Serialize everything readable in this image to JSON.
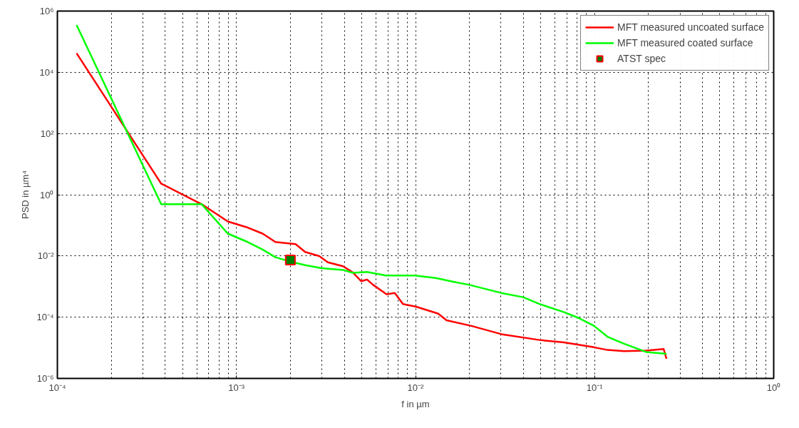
{
  "chart_data": {
    "type": "line",
    "xlabel": "f in µm",
    "ylabel": "PSD in µm⁴",
    "log": "xy",
    "xlim": [
      0.0001,
      1
    ],
    "ylim": [
      1e-06,
      1000000
    ],
    "xticks": [
      {
        "value": 0.0001,
        "label": "10⁻⁴"
      },
      {
        "value": 0.001,
        "label": "10⁻³"
      },
      {
        "value": 0.01,
        "label": "10⁻²"
      },
      {
        "value": 0.1,
        "label": "10⁻¹"
      },
      {
        "value": 1,
        "label": "10⁰"
      }
    ],
    "yticks": [
      {
        "value": 1e-06,
        "label": "10⁻⁶"
      },
      {
        "value": 0.0001,
        "label": "10⁻⁴"
      },
      {
        "value": 0.01,
        "label": "10⁻²"
      },
      {
        "value": 1,
        "label": "10⁰"
      },
      {
        "value": 100,
        "label": "10²"
      },
      {
        "value": 10000,
        "label": "10⁴"
      },
      {
        "value": 1000000,
        "label": "10⁶"
      }
    ],
    "grid": true,
    "legend": "top right",
    "line_style": "solid",
    "series": [
      {
        "name": "MFT measured uncoated surface",
        "color": "#ff0000",
        "x": [
          0.000128,
          0.00038,
          0.00064,
          0.000895,
          0.00113,
          0.0014,
          0.00165,
          0.00214,
          0.00242,
          0.0029,
          0.00324,
          0.00394,
          0.00446,
          0.00497,
          0.00536,
          0.00578,
          0.00689,
          0.00766,
          0.00851,
          0.0101,
          0.0134,
          0.0149,
          0.0205,
          0.0301,
          0.0492,
          0.0675,
          0.0993,
          0.118,
          0.146,
          0.194,
          0.243,
          0.252
        ],
        "values": [
          42000,
          2.3,
          0.49,
          0.134,
          0.0885,
          0.0537,
          0.0286,
          0.0243,
          0.0135,
          0.0099,
          0.0062,
          0.0046,
          0.0029,
          0.0015,
          0.0017,
          0.00115,
          0.00056,
          0.00062,
          0.00027,
          0.00022,
          0.00013,
          7.9e-05,
          5.2e-05,
          2.8e-05,
          1.8e-05,
          1.5e-05,
          1.04e-05,
          8.5e-06,
          7.8e-06,
          8.1e-06,
          9.1e-06,
          4.4e-06
        ]
      },
      {
        "name": "MFT measured coated surface",
        "color": "#00ff00",
        "x": [
          0.000128,
          0.00038,
          0.00064,
          0.000895,
          0.00113,
          0.0014,
          0.00165,
          0.00199,
          0.00242,
          0.003,
          0.00394,
          0.00446,
          0.00536,
          0.00684,
          0.00989,
          0.013,
          0.0166,
          0.0198,
          0.0301,
          0.0399,
          0.0492,
          0.0675,
          0.0805,
          0.0993,
          0.118,
          0.146,
          0.194,
          0.252
        ],
        "values": [
          350000,
          0.49,
          0.49,
          0.0537,
          0.0302,
          0.0162,
          0.0091,
          0.0066,
          0.005,
          0.004,
          0.0035,
          0.0028,
          0.003,
          0.0023,
          0.0023,
          0.0019,
          0.0014,
          0.00115,
          0.00062,
          0.00045,
          0.00027,
          0.000146,
          9.7e-05,
          5.2e-05,
          2.3e-05,
          1.36e-05,
          7.3e-06,
          6.4e-06
        ]
      },
      {
        "name": "ATST spec",
        "type": "scatter",
        "marker": "square",
        "color": "#008000",
        "x": [
          0.002
        ],
        "values": [
          0.0074
        ]
      }
    ]
  }
}
